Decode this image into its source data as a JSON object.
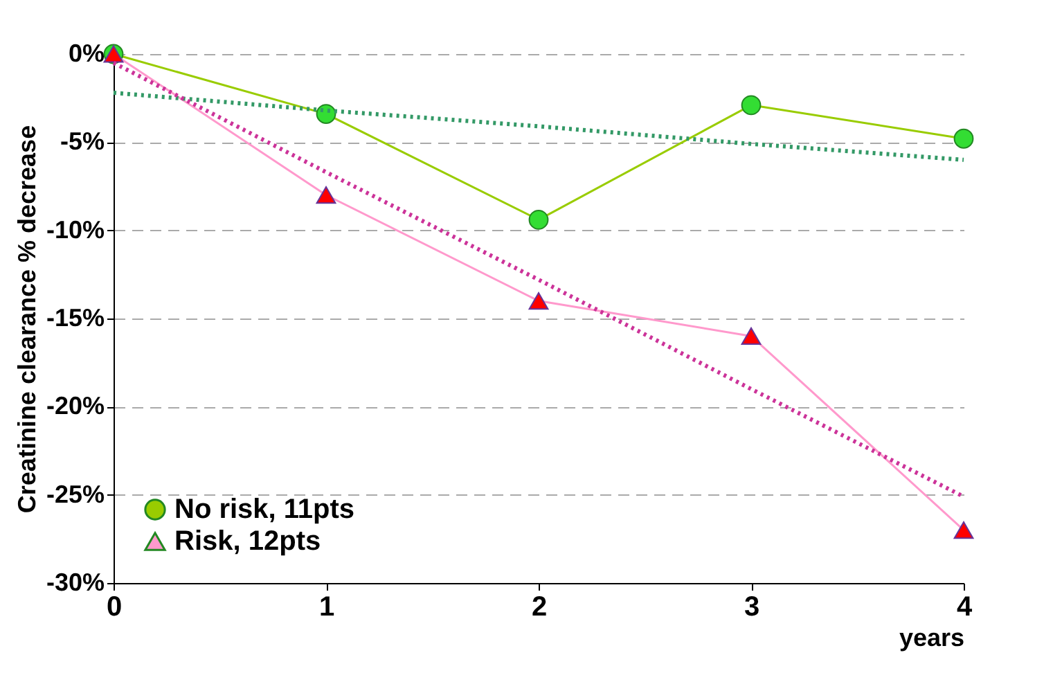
{
  "chart_data": {
    "type": "line",
    "ylabel": "Creatinine clearance % decrease",
    "xlabel": "years",
    "x": [
      0,
      1,
      2,
      3,
      4
    ],
    "series": [
      {
        "name": "No risk, 11pts",
        "color": "#99cc00",
        "marker": "circle",
        "values": [
          0,
          -3.4,
          -9.4,
          -2.9,
          -4.8
        ]
      },
      {
        "name": "Risk, 12pts",
        "color": "#ff99cc",
        "marker": "triangle",
        "values": [
          0,
          -8,
          -14,
          -16,
          -27
        ]
      },
      {
        "color": "#339966",
        "line_style": "dotted",
        "marker": "none",
        "values": [
          -2.2,
          -3.2,
          -4.1,
          -5.1,
          -6.0
        ]
      },
      {
        "color": "#cc3399",
        "line_style": "dotted",
        "marker": "none",
        "values": [
          -0.5,
          -6.7,
          -12.8,
          -19.0,
          -25.1
        ]
      }
    ],
    "xlim": [
      0,
      4
    ],
    "xticks": [
      0,
      1,
      2,
      3,
      4
    ],
    "ylim": [
      -30,
      0
    ],
    "yticks": [
      {
        "value": 0,
        "label": "0%"
      },
      {
        "value": -5,
        "label": "-5%"
      },
      {
        "value": -10,
        "label": "-10%"
      },
      {
        "value": -15,
        "label": "-15%"
      },
      {
        "value": -20,
        "label": "-20%"
      },
      {
        "value": -25,
        "label": "-25%"
      },
      {
        "value": -30,
        "label": "-30%"
      }
    ],
    "grid": "y",
    "legend": "bottom left"
  }
}
